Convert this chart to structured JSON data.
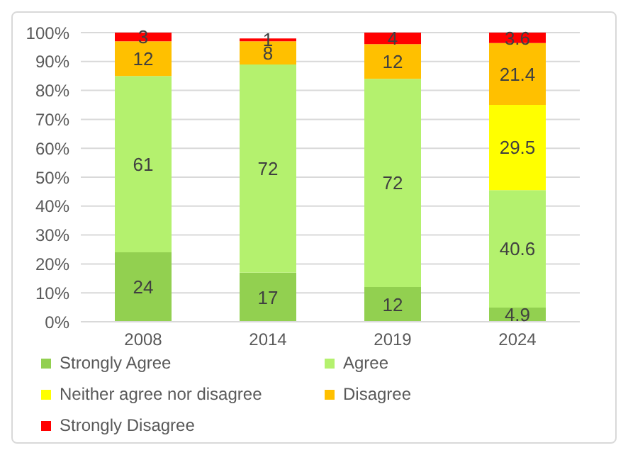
{
  "chart_data": {
    "type": "bar",
    "stacked": true,
    "categories": [
      "2008",
      "2014",
      "2019",
      "2024"
    ],
    "series": [
      {
        "name": "Strongly Agree",
        "color": "#92d050",
        "values": [
          24,
          17,
          12,
          4.9
        ]
      },
      {
        "name": "Agree",
        "color": "#b4f16e",
        "values": [
          61,
          72,
          72,
          40.6
        ]
      },
      {
        "name": "Neither agree nor disagree",
        "color": "#ffff00",
        "values": [
          null,
          null,
          null,
          29.5
        ]
      },
      {
        "name": "Disagree",
        "color": "#ffc000",
        "values": [
          12,
          8,
          12,
          21.4
        ]
      },
      {
        "name": "Strongly Disagree",
        "color": "#ff0000",
        "values": [
          3,
          1,
          4,
          3.6
        ]
      }
    ],
    "ylim": [
      0,
      100
    ],
    "yticks": [
      {
        "value": 0,
        "label": "0%"
      },
      {
        "value": 10,
        "label": "10%"
      },
      {
        "value": 20,
        "label": "20%"
      },
      {
        "value": 30,
        "label": "30%"
      },
      {
        "value": 40,
        "label": "40%"
      },
      {
        "value": 50,
        "label": "50%"
      },
      {
        "value": 60,
        "label": "60%"
      },
      {
        "value": 70,
        "label": "70%"
      },
      {
        "value": 80,
        "label": "80%"
      },
      {
        "value": 90,
        "label": "90%"
      },
      {
        "value": 100,
        "label": "100%"
      }
    ],
    "grid": "y",
    "legend": "bottom",
    "data_labels": true
  }
}
